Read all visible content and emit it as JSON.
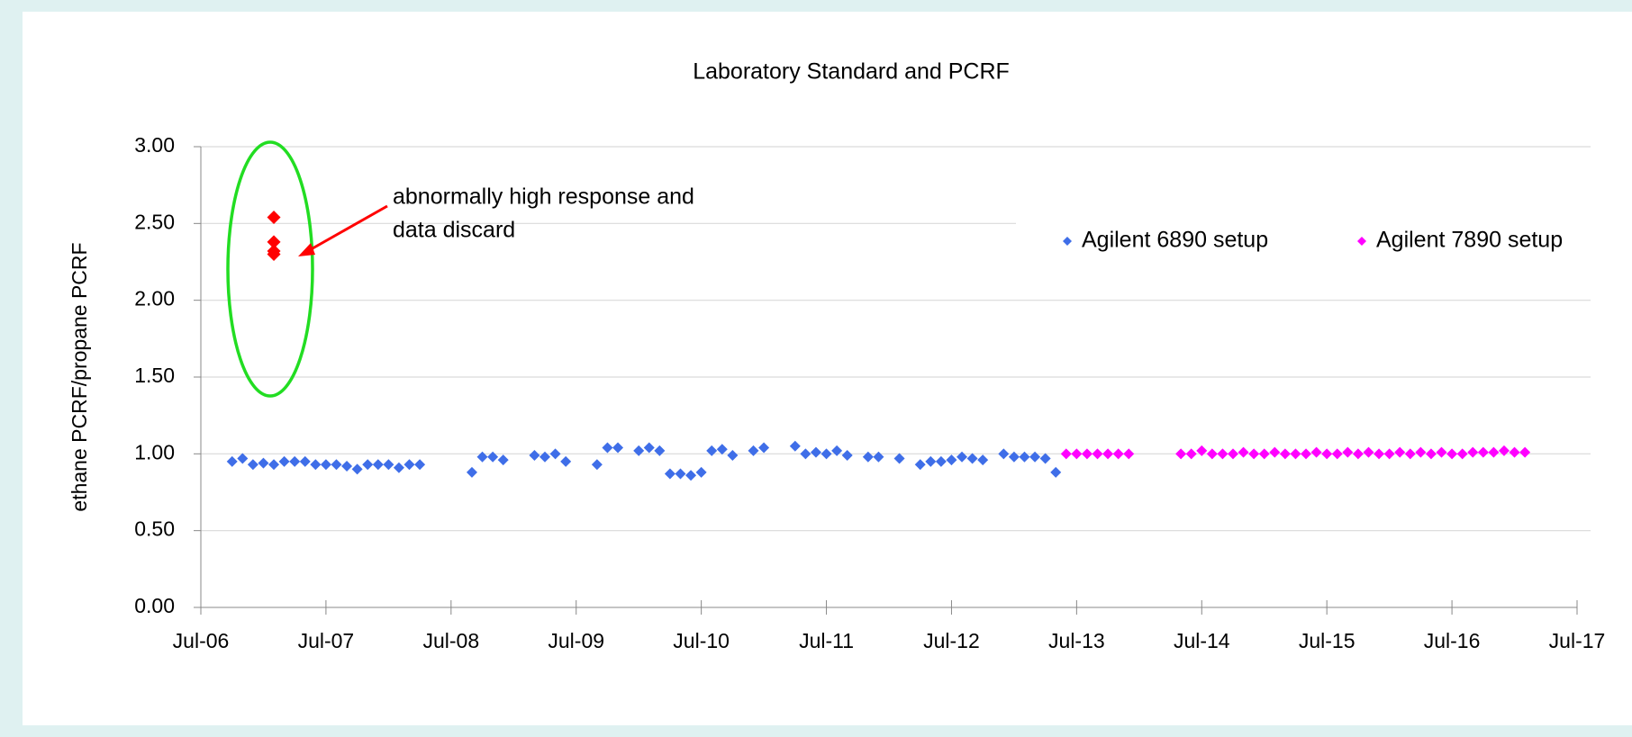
{
  "chart_data": {
    "type": "scatter",
    "title": "Laboratory Standard and PCRF",
    "y_label": "ethane PCRF/propane PCRF",
    "annotation": [
      "abnormally high response and",
      "data discard"
    ],
    "legend": "top-right",
    "grid": true,
    "xlim": [
      "2006-07",
      "2017-07"
    ],
    "xticks": [
      {
        "value": "2006-07",
        "label": "Jul-06"
      },
      {
        "value": "2007-07",
        "label": "Jul-07"
      },
      {
        "value": "2008-07",
        "label": "Jul-08"
      },
      {
        "value": "2009-07",
        "label": "Jul-09"
      },
      {
        "value": "2010-07",
        "label": "Jul-10"
      },
      {
        "value": "2011-07",
        "label": "Jul-11"
      },
      {
        "value": "2012-07",
        "label": "Jul-12"
      },
      {
        "value": "2013-07",
        "label": "Jul-13"
      },
      {
        "value": "2014-07",
        "label": "Jul-14"
      },
      {
        "value": "2015-07",
        "label": "Jul-15"
      },
      {
        "value": "2016-07",
        "label": "Jul-16"
      },
      {
        "value": "2017-07",
        "label": "Jul-17"
      }
    ],
    "ylim": [
      0,
      3
    ],
    "yticks": [
      {
        "value": 0,
        "label": "0.00"
      },
      {
        "value": 0.5,
        "label": "0.50"
      },
      {
        "value": 1,
        "label": "1.00"
      },
      {
        "value": 1.5,
        "label": "1.50"
      },
      {
        "value": 2,
        "label": "2.00"
      },
      {
        "value": 2.5,
        "label": "2.50"
      },
      {
        "value": 3,
        "label": "3.00"
      }
    ],
    "series": [
      {
        "name": "Agilent 6890 setup",
        "color": "#3f6ee8",
        "x": [
          "2006-10",
          "2006-11",
          "2006-12",
          "2007-01",
          "2007-02",
          "2007-03",
          "2007-04",
          "2007-05",
          "2007-06",
          "2007-07",
          "2007-08",
          "2007-09",
          "2007-10",
          "2007-11",
          "2007-12",
          "2008-01",
          "2008-02",
          "2008-03",
          "2008-04",
          "2008-09",
          "2008-10",
          "2008-11",
          "2008-12",
          "2009-03",
          "2009-04",
          "2009-05",
          "2009-06",
          "2009-09",
          "2009-10",
          "2009-11",
          "2010-01",
          "2010-02",
          "2010-03",
          "2010-04",
          "2010-05",
          "2010-06",
          "2010-07",
          "2010-08",
          "2010-09",
          "2010-10",
          "2010-12",
          "2011-01",
          "2011-04",
          "2011-05",
          "2011-06",
          "2011-07",
          "2011-08",
          "2011-09",
          "2011-11",
          "2011-12",
          "2012-02",
          "2012-04",
          "2012-05",
          "2012-06",
          "2012-07",
          "2012-08",
          "2012-09",
          "2012-10",
          "2012-12",
          "2013-01",
          "2013-02",
          "2013-03",
          "2013-04",
          "2013-05"
        ],
        "values": [
          0.95,
          0.97,
          0.93,
          0.94,
          0.93,
          0.95,
          0.95,
          0.95,
          0.93,
          0.93,
          0.93,
          0.92,
          0.9,
          0.93,
          0.93,
          0.93,
          0.91,
          0.93,
          0.93,
          0.88,
          0.98,
          0.98,
          0.96,
          0.99,
          0.98,
          1.0,
          0.95,
          0.93,
          1.04,
          1.04,
          1.02,
          1.04,
          1.02,
          0.87,
          0.87,
          0.86,
          0.88,
          1.02,
          1.03,
          0.99,
          1.02,
          1.04,
          1.05,
          1.0,
          1.01,
          1.0,
          1.02,
          0.99,
          0.98,
          0.98,
          0.97,
          0.93,
          0.95,
          0.95,
          0.96,
          0.98,
          0.97,
          0.96,
          1.0,
          0.98,
          0.98,
          0.98,
          0.97,
          0.88
        ]
      },
      {
        "name": "Agilent 7890 setup",
        "color": "#ff00ff",
        "x": [
          "2013-06",
          "2013-07",
          "2013-08",
          "2013-09",
          "2013-10",
          "2013-11",
          "2013-12",
          "2014-05",
          "2014-06",
          "2014-07",
          "2014-08",
          "2014-09",
          "2014-10",
          "2014-11",
          "2014-12",
          "2015-01",
          "2015-02",
          "2015-03",
          "2015-04",
          "2015-05",
          "2015-06",
          "2015-07",
          "2015-08",
          "2015-09",
          "2015-10",
          "2015-11",
          "2015-12",
          "2016-01",
          "2016-02",
          "2016-03",
          "2016-04",
          "2016-05",
          "2016-06",
          "2016-07",
          "2016-08",
          "2016-09",
          "2016-10",
          "2016-11",
          "2016-12",
          "2017-01",
          "2017-02"
        ],
        "values": [
          1.0,
          1.0,
          1.0,
          1.0,
          1.0,
          1.0,
          1.0,
          1.0,
          1.0,
          1.02,
          1.0,
          1.0,
          1.0,
          1.01,
          1.0,
          1.0,
          1.01,
          1.0,
          1.0,
          1.0,
          1.01,
          1.0,
          1.0,
          1.01,
          1.0,
          1.01,
          1.0,
          1.0,
          1.01,
          1.0,
          1.01,
          1.0,
          1.01,
          1.0,
          1.0,
          1.01,
          1.01,
          1.01,
          1.02,
          1.01,
          1.01
        ]
      }
    ],
    "discarded": {
      "color": "#ff0000",
      "x": [
        "2007-02",
        "2007-02",
        "2007-02",
        "2007-02"
      ],
      "values": [
        2.54,
        2.38,
        2.32,
        2.3
      ]
    }
  }
}
